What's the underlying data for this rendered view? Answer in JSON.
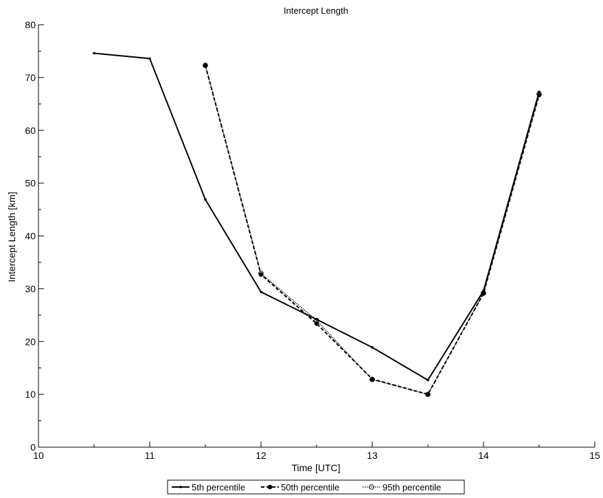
{
  "chart_data": {
    "type": "line",
    "title": "Intercept Length",
    "xlabel": "Time [UTC]",
    "ylabel": "Intercept Length [km]",
    "xlim": [
      10,
      15
    ],
    "ylim": [
      0,
      80
    ],
    "x_ticks": [
      10,
      11,
      12,
      13,
      14,
      15
    ],
    "y_ticks": [
      0,
      10,
      20,
      30,
      40,
      50,
      60,
      70,
      80
    ],
    "grid": false,
    "legend_position": "bottom-center",
    "series": [
      {
        "name": "5th percentile",
        "line_style": "solid",
        "marker": "dot",
        "color": "#000000",
        "x": [
          10.5,
          11.0,
          11.5,
          12.0,
          12.5,
          13.0,
          13.5,
          14.0,
          14.5
        ],
        "y": [
          74.6,
          73.6,
          46.9,
          29.4,
          24.2,
          18.9,
          12.7,
          29.6,
          67.3
        ]
      },
      {
        "name": "50th percentile",
        "line_style": "dashed",
        "marker": "filled-circle",
        "color": "#000000",
        "x": [
          11.5,
          12.0,
          12.5,
          13.0,
          13.5,
          14.0,
          14.5
        ],
        "y": [
          72.3,
          32.7,
          23.4,
          12.9,
          10.0,
          29.1,
          66.7
        ]
      },
      {
        "name": "95th percentile",
        "line_style": "dotted",
        "marker": "open-circle",
        "color": "#000000",
        "x": [
          11.5,
          12.0,
          12.5,
          13.0,
          13.5,
          14.0,
          14.5
        ],
        "y": [
          72.3,
          32.9,
          24.0,
          12.8,
          10.0,
          29.2,
          66.9
        ]
      }
    ]
  }
}
